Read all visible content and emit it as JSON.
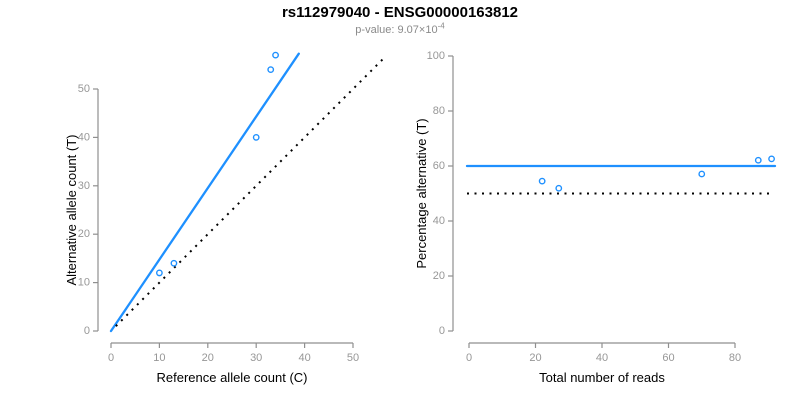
{
  "header": {
    "title": "rs112979040 - ENSG00000163812",
    "subtitle_prefix": "p-value: 9.07×10",
    "subtitle_exponent": "-4"
  },
  "colors": {
    "accent_blue": "#1E90FF",
    "axis_line_gray": "#8f8f8f",
    "tick_label_gray": "#979797",
    "dotted_black": "#000000",
    "axis_title_black": "#000000",
    "subtitle_gray": "#8a8a8a"
  },
  "chart_data": [
    {
      "type": "scatter",
      "name": "allele-counts-panel",
      "xlabel": "Reference allele count (C)",
      "ylabel": "Alternative allele count (T)",
      "xticks": [
        0,
        10,
        20,
        30,
        40,
        50
      ],
      "yticks": [
        0,
        10,
        20,
        30,
        40,
        50
      ],
      "xlim": [
        0,
        57
      ],
      "ylim": [
        0,
        57.5
      ],
      "points": [
        [
          10,
          12
        ],
        [
          13,
          14
        ],
        [
          30,
          40
        ],
        [
          33,
          54
        ],
        [
          34,
          57
        ]
      ],
      "fit_line": {
        "x1": 0,
        "y1": 0,
        "x2": 38.8,
        "y2": 57.3
      },
      "identity_line": {
        "x1": 1,
        "y1": 1,
        "x2": 56.8,
        "y2": 56.8
      }
    },
    {
      "type": "scatter",
      "name": "percentage-panel",
      "xlabel": "Total number of reads",
      "ylabel": "Percentage alternative (T)",
      "xticks": [
        0,
        20,
        40,
        60,
        80
      ],
      "yticks": [
        0,
        20,
        40,
        60,
        80,
        100
      ],
      "xlim": [
        0,
        92
      ],
      "ylim": [
        0,
        100
      ],
      "points": [
        [
          22,
          54.5
        ],
        [
          27,
          51.9
        ],
        [
          70,
          57.1
        ],
        [
          87,
          62.1
        ],
        [
          91,
          62.6
        ]
      ],
      "blue_hline_y": 60,
      "dotted_hline_y": 50
    }
  ]
}
